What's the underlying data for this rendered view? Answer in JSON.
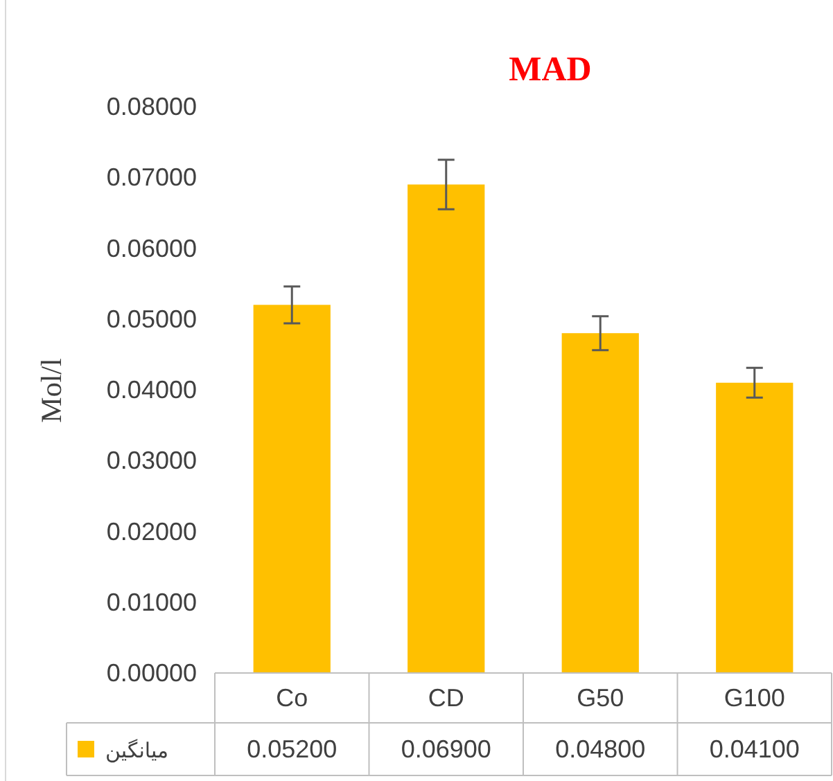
{
  "chart_data": {
    "type": "bar",
    "title": "MAD",
    "ylabel": "Mol/l",
    "categories": [
      "Co",
      "CD",
      "G50",
      "G100"
    ],
    "series": [
      {
        "name": "میانگین",
        "color": "#ffc000",
        "values": [
          0.052,
          0.069,
          0.048,
          0.041
        ],
        "errors": [
          0.0026,
          0.0035,
          0.0024,
          0.0021
        ],
        "value_labels": [
          "0.05200",
          "0.06900",
          "0.04800",
          "0.04100"
        ]
      }
    ],
    "ylim": [
      0,
      0.08
    ],
    "yticks": [
      {
        "value": 0,
        "label": "0.00000"
      },
      {
        "value": 0.01,
        "label": "0.01000"
      },
      {
        "value": 0.02,
        "label": "0.02000"
      },
      {
        "value": 0.03,
        "label": "0.03000"
      },
      {
        "value": 0.04,
        "label": "0.04000"
      },
      {
        "value": 0.05,
        "label": "0.05000"
      },
      {
        "value": 0.06,
        "label": "0.06000"
      },
      {
        "value": 0.07,
        "label": "0.07000"
      },
      {
        "value": 0.08,
        "label": "0.08000"
      }
    ],
    "legend": "bottom",
    "grid": false
  }
}
